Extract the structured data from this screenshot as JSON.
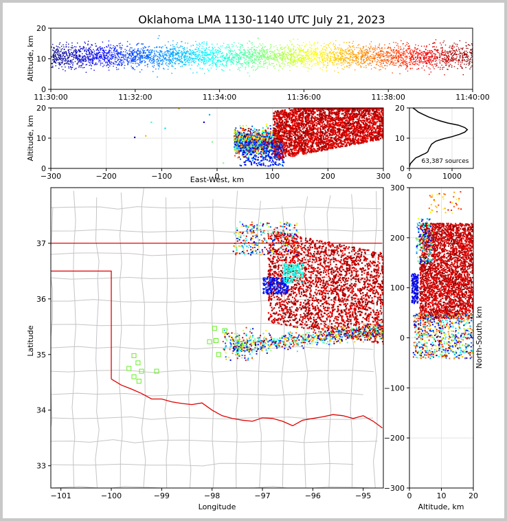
{
  "chart_data": [
    {
      "type": "scatter",
      "panel": "time-altitude",
      "title": "Oklahoma LMA 1130-1140 UTC July 21, 2023",
      "xlabel": "",
      "ylabel": "Altitude, km",
      "x_ticks": [
        "11:30:00",
        "11:32:00",
        "11:34:00",
        "11:36:00",
        "11:38:00",
        "11:40:00"
      ],
      "y_ticks": [
        "0",
        "10",
        "20"
      ],
      "xlim": [
        "11:30:00",
        "11:40:00"
      ],
      "ylim": [
        0,
        20
      ],
      "colormap": "jet (color encodes time)",
      "series": [
        {
          "x": [
            "11:30:00",
            "11:40:00"
          ],
          "y_range": [
            0,
            20
          ]
        }
      ]
    },
    {
      "type": "scatter",
      "panel": "east-west-altitude",
      "xlabel": "East-West, km",
      "ylabel": "Altitude, km",
      "x_ticks": [
        "−300",
        "−200",
        "−100",
        "0",
        "100",
        "200",
        "300"
      ],
      "y_ticks": [
        "0",
        "10",
        "20"
      ],
      "xlim": [
        -300,
        300
      ],
      "ylim": [
        0,
        20
      ],
      "grid": true
    },
    {
      "type": "line",
      "panel": "altitude-histogram",
      "x_ticks": [
        "0",
        "1000"
      ],
      "y_ticks": [
        "0",
        "10",
        "20"
      ],
      "xlim": [
        0,
        1500
      ],
      "ylim": [
        0,
        20
      ],
      "annotation": "63,387 sources",
      "x": [
        0,
        20,
        80,
        150,
        230,
        300,
        380,
        430,
        460,
        520,
        620,
        800,
        1000,
        1180,
        1300,
        1360,
        1300,
        1150,
        900,
        650,
        450,
        300,
        200,
        150,
        110,
        80
      ],
      "y": [
        0.5,
        1.5,
        2.5,
        3.5,
        4.0,
        4.5,
        5.0,
        5.5,
        6.5,
        8.0,
        9.0,
        9.8,
        10.5,
        11.3,
        12.0,
        12.8,
        13.5,
        14.3,
        15.0,
        16.0,
        17.0,
        18.0,
        18.7,
        19.3,
        19.7,
        20.0
      ]
    },
    {
      "type": "scatter",
      "panel": "map",
      "xlabel": "Longitude",
      "ylabel": "Latitude",
      "x_ticks": [
        "−101",
        "−100",
        "−99",
        "−98",
        "−97",
        "−96",
        "−95"
      ],
      "y_ticks": [
        "33",
        "34",
        "35",
        "36",
        "37"
      ],
      "xlim": [
        -101.2,
        -94.6
      ],
      "ylim": [
        32.6,
        38.0
      ],
      "station_markers": [
        [
          -99.55,
          34.98
        ],
        [
          -99.47,
          34.85
        ],
        [
          -99.65,
          34.75
        ],
        [
          -99.4,
          34.7
        ],
        [
          -99.55,
          34.6
        ],
        [
          -99.45,
          34.52
        ],
        [
          -99.1,
          34.7
        ],
        [
          -97.95,
          35.47
        ],
        [
          -97.75,
          35.43
        ],
        [
          -98.05,
          35.23
        ],
        [
          -97.92,
          35.25
        ],
        [
          -97.5,
          35.28
        ],
        [
          -97.87,
          35.0
        ],
        [
          -97.45,
          35.15
        ],
        [
          -97.35,
          35.2
        ]
      ]
    },
    {
      "type": "scatter",
      "panel": "altitude-north-south",
      "xlabel": "Altitude, km",
      "ylabel": "North-South, km",
      "x_ticks": [
        "0",
        "10",
        "20"
      ],
      "y_ticks": [
        "300",
        "200",
        "100",
        "0",
        "−100",
        "−200",
        "−300"
      ],
      "xlim": [
        0,
        20
      ],
      "ylim": [
        -300,
        300
      ],
      "grid": true
    }
  ]
}
